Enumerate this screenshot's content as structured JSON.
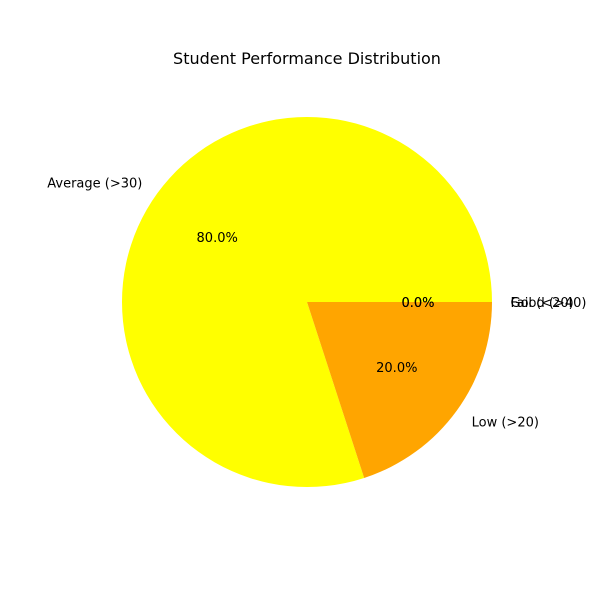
{
  "chart_data": {
    "type": "pie",
    "title": "Student Performance Distribution",
    "slices": [
      {
        "label": "Good (>40)",
        "value": 0.0,
        "pct_label": "0.0%",
        "color": "#008000"
      },
      {
        "label": "Average (>30)",
        "value": 80.0,
        "pct_label": "80.0%",
        "color": "#ffff00"
      },
      {
        "label": "Low (>20)",
        "value": 20.0,
        "pct_label": "20.0%",
        "color": "#ffa500"
      },
      {
        "label": "Fail (<20)",
        "value": 0.0,
        "pct_label": "0.0%",
        "color": "#ff0000"
      }
    ],
    "legend": "none"
  }
}
